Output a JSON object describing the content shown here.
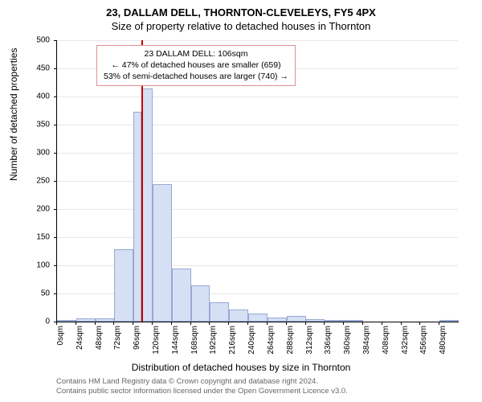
{
  "header": {
    "address": "23, DALLAM DELL, THORNTON-CLEVELEYS, FY5 4PX",
    "subtitle": "Size of property relative to detached houses in Thornton"
  },
  "annotation": {
    "line1": "23 DALLAM DELL: 106sqm",
    "line2": "← 47% of detached houses are smaller (659)",
    "line3": "53% of semi-detached houses are larger (740) →"
  },
  "axes": {
    "ylabel": "Number of detached properties",
    "xlabel": "Distribution of detached houses by size in Thornton",
    "ylim": [
      0,
      500
    ],
    "ytick_step": 50,
    "x_tick_step": 24,
    "x_max_tick": 480
  },
  "chart": {
    "type": "histogram",
    "ref_value_sqm": 106,
    "ref_line_color": "#cc0000",
    "bar_fill": "#d6e0f5",
    "bar_border": "#97a8d1",
    "grid_color": "#e8e8e8",
    "background_color": "#ffffff",
    "bin_width_sqm": 24,
    "bins": [
      {
        "start": 0,
        "count": 3
      },
      {
        "start": 24,
        "count": 6
      },
      {
        "start": 48,
        "count": 6
      },
      {
        "start": 72,
        "count": 128
      },
      {
        "start": 96,
        "count": 373
      },
      {
        "start": 106,
        "count": 414
      },
      {
        "start": 120,
        "count": 244
      },
      {
        "start": 144,
        "count": 95
      },
      {
        "start": 168,
        "count": 64
      },
      {
        "start": 192,
        "count": 35
      },
      {
        "start": 216,
        "count": 22
      },
      {
        "start": 240,
        "count": 14
      },
      {
        "start": 264,
        "count": 7
      },
      {
        "start": 288,
        "count": 10
      },
      {
        "start": 312,
        "count": 4
      },
      {
        "start": 336,
        "count": 1
      },
      {
        "start": 360,
        "count": 1
      },
      {
        "start": 384,
        "count": 0
      },
      {
        "start": 408,
        "count": 0
      },
      {
        "start": 432,
        "count": 0
      },
      {
        "start": 456,
        "count": 0
      },
      {
        "start": 480,
        "count": 1
      }
    ]
  },
  "attribution": {
    "line1": "Contains HM Land Registry data © Crown copyright and database right 2024.",
    "line2": "Contains public sector information licensed under the Open Government Licence v3.0."
  }
}
